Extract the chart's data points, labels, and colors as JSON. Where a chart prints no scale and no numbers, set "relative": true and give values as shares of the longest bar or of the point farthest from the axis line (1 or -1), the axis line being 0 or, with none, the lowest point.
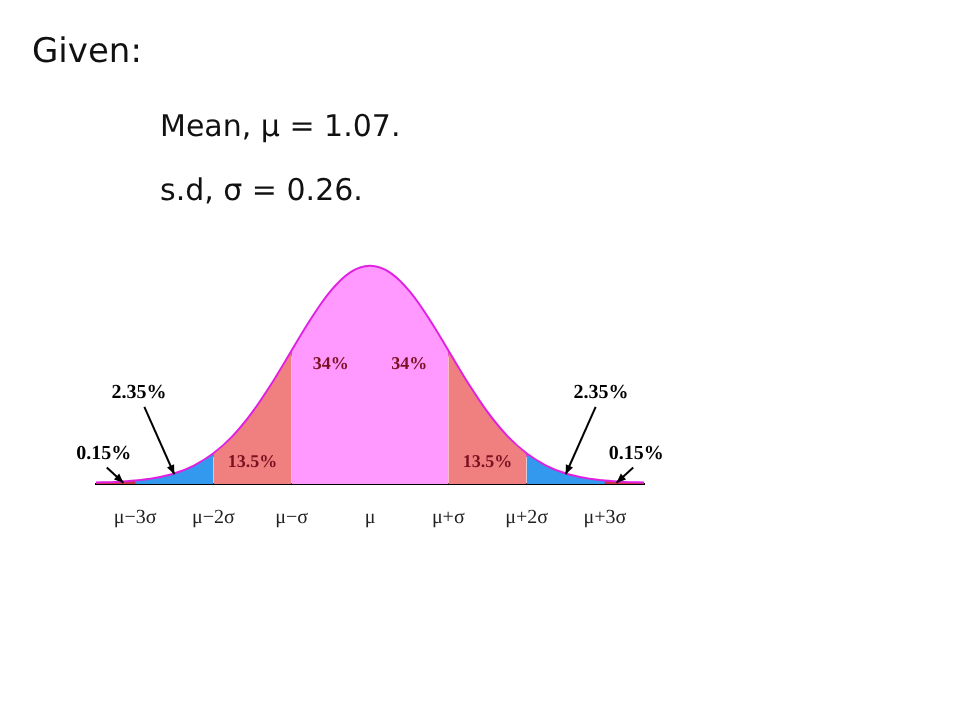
{
  "chart_data": {
    "type": "area",
    "title": "Given:",
    "annotations": [
      "Mean, μ = 1.07.",
      "s.d, σ = 0.26.",
      "34%",
      "34%",
      "13.5%",
      "13.5%",
      "2.35%",
      "2.35%",
      "0.15%",
      "0.15%"
    ],
    "relative": true,
    "categories": [
      null,
      null,
      "μ−3σ",
      null,
      null,
      null,
      "μ−2σ",
      null,
      null,
      null,
      "μ−σ",
      null,
      null,
      null,
      "μ",
      null,
      null,
      null,
      "μ+σ",
      null,
      null,
      null,
      "μ+2σ",
      null,
      null,
      null,
      "μ+3σ",
      null,
      null
    ],
    "grid": false,
    "series": [
      {
        "color": "#cc3344",
        "values": [
          0.0022,
          0.0051,
          0.0111,
          null,
          null,
          null,
          null,
          null,
          null,
          null,
          null,
          null,
          null,
          null,
          null,
          null,
          null,
          null,
          null,
          null,
          null,
          null,
          null,
          null,
          null,
          null,
          null,
          null,
          null
        ]
      },
      {
        "color": "#3399ee",
        "values": [
          null,
          null,
          0.0111,
          0.0228,
          0.0439,
          0.0796,
          0.1353,
          null,
          null,
          null,
          null,
          null,
          null,
          null,
          null,
          null,
          null,
          null,
          null,
          null,
          null,
          null,
          null,
          null,
          null,
          null,
          null,
          null,
          null
        ]
      },
      {
        "color": "#f08080",
        "values": [
          null,
          null,
          null,
          null,
          null,
          null,
          0.1353,
          0.2163,
          0.3247,
          0.4578,
          0.6065,
          null,
          null,
          null,
          null,
          null,
          null,
          null,
          null,
          null,
          null,
          null,
          null,
          null,
          null,
          null,
          null,
          null,
          null
        ]
      },
      {
        "color": "#ff99ff",
        "values": [
          null,
          null,
          null,
          null,
          null,
          null,
          null,
          null,
          null,
          null,
          0.6065,
          0.7548,
          0.8825,
          0.9692,
          1,
          0.9692,
          0.8825,
          0.7548,
          0.6065,
          null,
          null,
          null,
          null,
          null,
          null,
          null,
          null,
          null,
          null
        ]
      },
      {
        "color": "#f08080",
        "values": [
          null,
          null,
          null,
          null,
          null,
          null,
          null,
          null,
          null,
          null,
          null,
          null,
          null,
          null,
          null,
          null,
          null,
          null,
          0.6065,
          0.4578,
          0.3247,
          0.2163,
          0.1353,
          null,
          null,
          null,
          null,
          null,
          null
        ]
      },
      {
        "color": "#3399ee",
        "values": [
          null,
          null,
          null,
          null,
          null,
          null,
          null,
          null,
          null,
          null,
          null,
          null,
          null,
          null,
          null,
          null,
          null,
          null,
          null,
          null,
          null,
          null,
          0.1353,
          0.0796,
          0.0439,
          0.0228,
          0.0111,
          null,
          null
        ]
      },
      {
        "color": "#cc3344",
        "values": [
          null,
          null,
          null,
          null,
          null,
          null,
          null,
          null,
          null,
          null,
          null,
          null,
          null,
          null,
          null,
          null,
          null,
          null,
          null,
          null,
          null,
          null,
          null,
          null,
          null,
          null,
          0.0111,
          0.0051,
          0.0022
        ]
      },
      {
        "type": "line",
        "color": "#e020e0",
        "values": [
          0.0022,
          0.0051,
          0.0111,
          0.0228,
          0.0439,
          0.0796,
          0.1353,
          0.2163,
          0.3247,
          0.4578,
          0.6065,
          0.7548,
          0.8825,
          0.9692,
          1,
          0.9692,
          0.8825,
          0.7548,
          0.6065,
          0.4578,
          0.3247,
          0.2163,
          0.1353,
          0.0796,
          0.0439,
          0.0228,
          0.0111,
          0.0051,
          0.0022
        ]
      }
    ]
  }
}
